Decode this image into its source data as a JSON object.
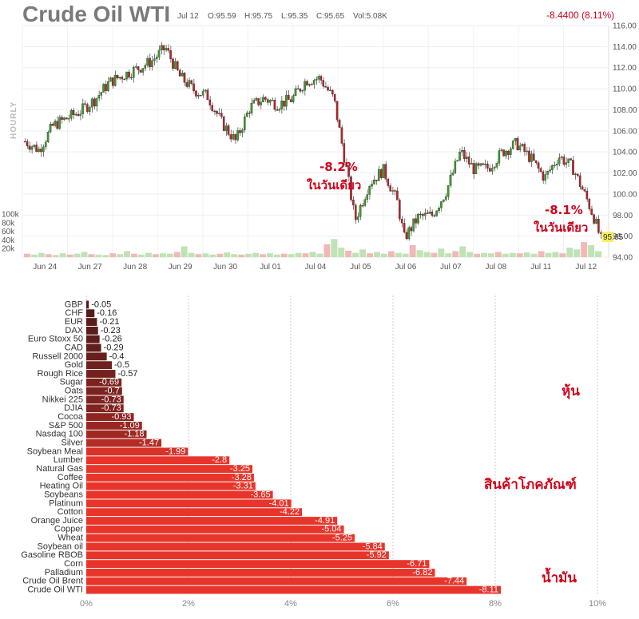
{
  "chart_data": [
    {
      "type": "candlestick",
      "title": "Crude Oil WTI",
      "side_label": "HOURLY",
      "info": {
        "date": "Jul 12",
        "open": "O:95.59",
        "high": "H:95.75",
        "low": "L:95.35",
        "close": "C:95.65",
        "volume": "Vol:5.08K"
      },
      "change": "-8.4400 (8.11%)",
      "last_price": "95.65",
      "x_ticks": [
        "Jun 24",
        "Jun 27",
        "Jun 28",
        "Jun 29",
        "Jun 30",
        "Jul 01",
        "Jul 04",
        "Jul 05",
        "Jul 06",
        "Jul 07",
        "Jul 08",
        "Jul 11",
        "Jul 12"
      ],
      "y_ticks": [
        "116.00",
        "114.00",
        "112.00",
        "110.00",
        "108.00",
        "106.00",
        "104.00",
        "102.00",
        "100.00",
        "98.00",
        "96.00",
        "94.00"
      ],
      "ylim": [
        94,
        116
      ],
      "volume_ticks": [
        "100k",
        "80k",
        "60k",
        "40k",
        "20k"
      ],
      "volume_max": 100,
      "price_path": [
        [
          0,
          105.0
        ],
        [
          2,
          104.2
        ],
        [
          4,
          106.5
        ],
        [
          6,
          107.2
        ],
        [
          8,
          107.9
        ],
        [
          10,
          109.0
        ],
        [
          12,
          110.6
        ],
        [
          14,
          111.3
        ],
        [
          16,
          111.9
        ],
        [
          18,
          112.6
        ],
        [
          20,
          113.9
        ],
        [
          22,
          111.2
        ],
        [
          24,
          109.9
        ],
        [
          26,
          109.3
        ],
        [
          28,
          106.8
        ],
        [
          30,
          105.0
        ],
        [
          32,
          108.2
        ],
        [
          34,
          109.1
        ],
        [
          36,
          108.5
        ],
        [
          38,
          109.0
        ],
        [
          40,
          110.8
        ],
        [
          42,
          111.0
        ],
        [
          44,
          109.0
        ],
        [
          46,
          101.5
        ],
        [
          47,
          97.5
        ],
        [
          49,
          101.0
        ],
        [
          51,
          102.3
        ],
        [
          53,
          99.3
        ],
        [
          54,
          95.8
        ],
        [
          56,
          97.8
        ],
        [
          58,
          98.0
        ],
        [
          60,
          100.3
        ],
        [
          62,
          104.0
        ],
        [
          64,
          102.3
        ],
        [
          66,
          102.5
        ],
        [
          68,
          104.0
        ],
        [
          70,
          104.8
        ],
        [
          72,
          103.4
        ],
        [
          74,
          101.5
        ],
        [
          76,
          103.6
        ],
        [
          78,
          102.5
        ],
        [
          80,
          99.5
        ],
        [
          81,
          97.8
        ],
        [
          82,
          95.65
        ]
      ],
      "volume_values": [
        8,
        6,
        10,
        7,
        5,
        9,
        6,
        8,
        12,
        7,
        6,
        5,
        9,
        7,
        14,
        8,
        6,
        10,
        7,
        9,
        8,
        12,
        25,
        10,
        7,
        9,
        6,
        8,
        11,
        7,
        6,
        8,
        10,
        7,
        9,
        6,
        8,
        7,
        10,
        9,
        12,
        8,
        30,
        42,
        22,
        15,
        10,
        18,
        9,
        12,
        8,
        14,
        10,
        8,
        28,
        16,
        12,
        10,
        20,
        9,
        14,
        25,
        12,
        8,
        10,
        9,
        12,
        8,
        10,
        9,
        11,
        8,
        14,
        10,
        12,
        9,
        22,
        18,
        35,
        28,
        14
      ],
      "annotations": [
        {
          "pct": "-8.2%",
          "text": "ในวันเดียว"
        },
        {
          "pct": "-8.1%",
          "text": "ในวันเดียว"
        }
      ]
    },
    {
      "type": "bar",
      "orientation": "horizontal",
      "categories": [
        "GBP",
        "CHF",
        "EUR",
        "DAX",
        "Euro Stoxx 50",
        "CAD",
        "Russell 2000",
        "Gold",
        "Rough Rice",
        "Sugar",
        "Oats",
        "Nikkei 225",
        "DJIA",
        "Cocoa",
        "S&P 500",
        "Nasdaq 100",
        "Silver",
        "Soybean Meal",
        "Lumber",
        "Natural Gas",
        "Coffee",
        "Heating Oil",
        "Soybeans",
        "Platinum",
        "Cotton",
        "Orange Juice",
        "Copper",
        "Wheat",
        "Soybean oil",
        "Gasoline RBOB",
        "Corn",
        "Palladium",
        "Crude Oil Brent",
        "Crude Oil WTI"
      ],
      "values": [
        -0.05,
        -0.16,
        -0.21,
        -0.23,
        -0.26,
        -0.29,
        -0.4,
        -0.5,
        -0.57,
        -0.69,
        -0.7,
        -0.73,
        -0.73,
        -0.93,
        -1.09,
        -1.18,
        -1.47,
        -1.99,
        -2.8,
        -3.25,
        -3.28,
        -3.31,
        -3.65,
        -4.01,
        -4.22,
        -4.91,
        -5.04,
        -5.25,
        -5.84,
        -5.92,
        -6.71,
        -6.82,
        -7.44,
        -8.11
      ],
      "value_labels": [
        "-0.05",
        "-0.16",
        "-0.21",
        "-0.23",
        "-0.26",
        "-0.29",
        "-0.4",
        "-0.5",
        "-0.57",
        "-0.69",
        "-0.7",
        "-0.73",
        "-0.73",
        "-0.93",
        "-1.09",
        "-1.18",
        "-1.47",
        "-1.99",
        "-2.8",
        "-3.25",
        "-3.28",
        "-3.31",
        "-3.65",
        "-4.01",
        "-4.22",
        "-4.91",
        "-5.04",
        "-5.25",
        "-5.84",
        "-5.92",
        "-6.71",
        "-6.82",
        "-7.44",
        "-8.11"
      ],
      "x_ticks": [
        "0%",
        "2%",
        "4%",
        "6%",
        "8%",
        "10%"
      ],
      "xlim": [
        0,
        10
      ],
      "group_labels": [
        "หุ้น",
        "สินค้าโภคภัณฑ์",
        "น้ำมัน"
      ],
      "colors": {
        "dark": "#4a1a1a",
        "light": "#e8352b"
      }
    }
  ]
}
